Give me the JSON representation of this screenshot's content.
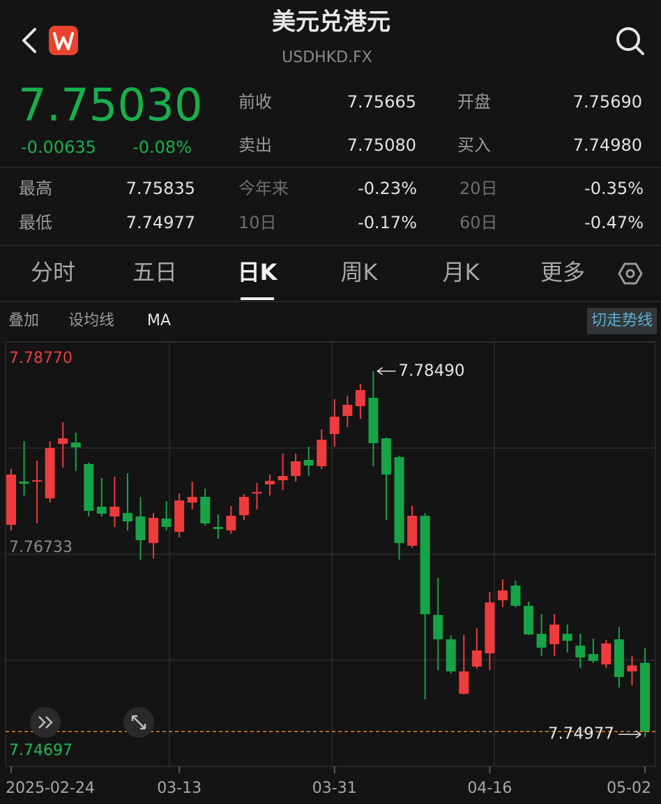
{
  "header": {
    "title": "美元兑港元",
    "subtitle": "USDHKD.FX"
  },
  "quote": {
    "price": "7.75030",
    "change": "-0.00635",
    "change_pct": "-0.08%"
  },
  "stats": [
    {
      "label": "前收",
      "value": "7.75665"
    },
    {
      "label": "开盘",
      "value": "7.75690"
    },
    {
      "label": "卖出",
      "value": "7.75080"
    },
    {
      "label": "买入",
      "value": "7.74980"
    },
    {
      "label": "最高",
      "value": "7.75835"
    },
    {
      "label": "今年来",
      "value": "-0.23%"
    },
    {
      "label": "20日",
      "value": "-0.35%"
    },
    {
      "label": "最低",
      "value": "7.74977"
    },
    {
      "label": "10日",
      "value": "-0.17%"
    },
    {
      "label": "60日",
      "value": "-0.47%"
    }
  ],
  "tabs": [
    "分时",
    "五日",
    "日K",
    "周K",
    "月K",
    "更多"
  ],
  "active_tab": 2,
  "toolbar": {
    "items": [
      "叠加",
      "设均线",
      "MA"
    ],
    "button": "切走势线"
  },
  "chart_data": {
    "type": "candlestick",
    "categories": [
      "2025-02-24",
      null,
      null,
      null,
      null,
      null,
      null,
      null,
      null,
      null,
      null,
      null,
      null,
      "03-13",
      null,
      null,
      null,
      null,
      null,
      null,
      null,
      null,
      null,
      null,
      null,
      "03-31",
      null,
      null,
      null,
      null,
      null,
      null,
      null,
      null,
      null,
      null,
      null,
      "04-16",
      null,
      null,
      null,
      null,
      null,
      null,
      null,
      null,
      null,
      null,
      null,
      "05-02"
    ],
    "open": [
      7.77015,
      7.7743,
      7.7743,
      7.77269,
      7.77792,
      7.77805,
      7.77598,
      7.77189,
      7.77095,
      7.77129,
      7.77095,
      7.7684,
      7.77075,
      7.76948,
      7.77229,
      7.77283,
      7.76995,
      7.76961,
      7.77108,
      7.77316,
      7.77403,
      7.77443,
      7.77484,
      7.77638,
      7.77577,
      7.77886,
      7.7806,
      7.78154,
      7.78234,
      7.77845,
      7.77665,
      7.76814,
      7.77102,
      7.7615,
      7.75916,
      7.75393,
      7.75655,
      7.75782,
      7.76291,
      7.76432,
      7.76237,
      7.75969,
      7.75869,
      7.75969,
      7.75856,
      7.75775,
      7.75675,
      7.75916,
      7.75608,
      7.7569
    ],
    "high": [
      7.77551,
      7.77819,
      7.77631,
      7.77819,
      7.78,
      7.77899,
      7.77611,
      7.77464,
      7.77477,
      7.7751,
      7.77283,
      7.77129,
      7.77242,
      7.77316,
      7.7743,
      7.77363,
      7.77115,
      7.77196,
      7.77309,
      7.77417,
      7.77497,
      7.77698,
      7.77698,
      7.77765,
      7.77933,
      7.78221,
      7.78254,
      7.78368,
      7.7849,
      7.77852,
      7.77678,
      7.77196,
      7.77129,
      7.76505,
      7.75956,
      7.75956,
      7.76023,
      7.76371,
      7.76492,
      7.76479,
      7.76278,
      7.76157,
      7.76157,
      7.76057,
      7.75969,
      7.75923,
      7.75909,
      7.76036,
      7.75755,
      7.75835
    ],
    "low": [
      7.76961,
      7.77296,
      7.77028,
      7.77229,
      7.77564,
      7.77531,
      7.77095,
      7.77095,
      7.76995,
      7.76961,
      7.7668,
      7.76693,
      7.76961,
      7.76894,
      7.77162,
      7.77008,
      7.76881,
      7.76928,
      7.77062,
      7.77162,
      7.77296,
      7.7735,
      7.7743,
      7.77484,
      7.77551,
      7.77765,
      7.77953,
      7.78033,
      7.77577,
      7.77062,
      7.7668,
      7.76794,
      7.7534,
      7.75621,
      7.75588,
      7.75387,
      7.75634,
      7.75621,
      7.76224,
      7.76224,
      7.75956,
      7.75755,
      7.75755,
      7.75789,
      7.75641,
      7.75688,
      7.75641,
      7.75454,
      7.75474,
      7.74977
    ],
    "close": [
      7.77497,
      7.7741,
      7.77443,
      7.77752,
      7.77845,
      7.77758,
      7.77149,
      7.77122,
      7.77189,
      7.77048,
      7.76867,
      7.77082,
      7.76995,
      7.77249,
      7.77283,
      7.77028,
      7.76974,
      7.77102,
      7.77283,
      7.7733,
      7.77437,
      7.77484,
      7.77624,
      7.77584,
      7.77832,
      7.78053,
      7.78167,
      7.78308,
      7.77799,
      7.77497,
      7.7684,
      7.77102,
      7.76157,
      7.75916,
      7.75608,
      7.75608,
      7.75809,
      7.76271,
      7.76385,
      7.76237,
      7.75963,
      7.75835,
      7.76057,
      7.75902,
      7.75742,
      7.75708,
      7.75876,
      7.75554,
      7.75665,
      7.7503
    ],
    "up_color": "#ee3b3d",
    "down_color": "#17a347",
    "last_line_color": "#e8821e",
    "ylim": [
      7.74697,
      7.7877
    ],
    "yticks": [
      {
        "value": 7.7877,
        "label": "7.78770"
      },
      7.76733,
      7.74697
    ],
    "max_label": "7.78490",
    "min_label": "7.74977",
    "grid": true
  }
}
